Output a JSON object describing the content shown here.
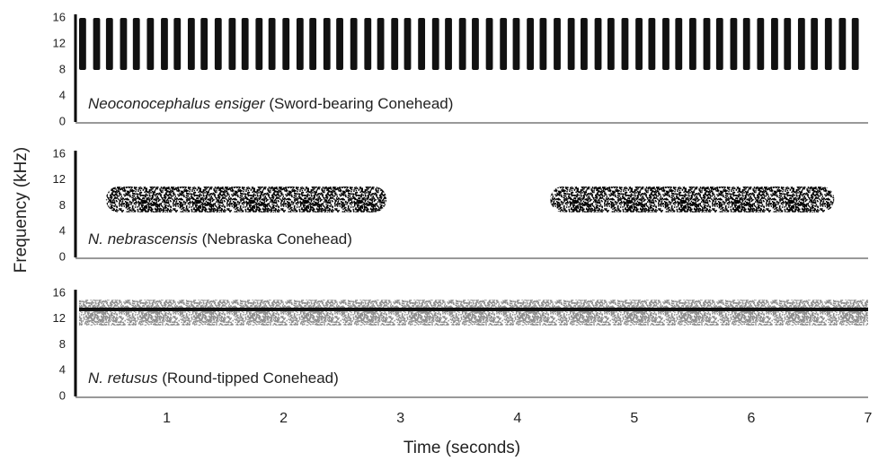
{
  "chart_data": [
    {
      "type": "spectrogram",
      "species": "Neoconocephalus ensiger",
      "common": "(Sword-bearing Conehead)",
      "xlim": [
        0.25,
        7
      ],
      "ylim": [
        0,
        16
      ],
      "yticks": [
        0,
        4,
        8,
        12,
        16
      ],
      "start": [
        0.25,
        0.37,
        0.48,
        0.6,
        0.71,
        0.83,
        0.95,
        1.06,
        1.18,
        1.29,
        1.41,
        1.53,
        1.64,
        1.76,
        1.87,
        1.99,
        2.11,
        2.22,
        2.34,
        2.45,
        2.57,
        2.69,
        2.8,
        2.92,
        3.03,
        3.15,
        3.27,
        3.38,
        3.5,
        3.61,
        3.73,
        3.85,
        3.96,
        4.08,
        4.19,
        4.31,
        4.43,
        4.54,
        4.66,
        4.77,
        4.89,
        5.01,
        5.12,
        5.24,
        5.35,
        5.47,
        5.59,
        5.7,
        5.82,
        5.93,
        6.05,
        6.17,
        6.28,
        6.4,
        6.51,
        6.63,
        6.75,
        6.86
      ],
      "end": [
        0.31,
        0.43,
        0.54,
        0.66,
        0.77,
        0.89,
        1.01,
        1.12,
        1.24,
        1.35,
        1.47,
        1.59,
        1.7,
        1.82,
        1.93,
        2.05,
        2.17,
        2.28,
        2.4,
        2.51,
        2.63,
        2.75,
        2.86,
        2.98,
        3.09,
        3.21,
        3.33,
        3.44,
        3.56,
        3.67,
        3.79,
        3.91,
        4.02,
        4.14,
        4.25,
        4.37,
        4.49,
        4.6,
        4.72,
        4.83,
        4.95,
        5.07,
        5.18,
        5.3,
        5.41,
        5.53,
        5.65,
        5.76,
        5.88,
        5.99,
        6.11,
        6.23,
        6.34,
        6.46,
        6.57,
        6.69,
        6.81,
        6.92
      ],
      "low": 8,
      "high": 16,
      "color": "#111111"
    },
    {
      "type": "spectrogram",
      "species": "N. nebrascensis",
      "common": "(Nebraska Conehead)",
      "ylabel": "Frequency (kHz)",
      "xlim": [
        0.25,
        7
      ],
      "ylim": [
        0,
        16
      ],
      "yticks": [
        0,
        4,
        8,
        12,
        16
      ],
      "start": [
        0.48,
        4.28
      ],
      "end": [
        2.88,
        6.71
      ],
      "low": 7,
      "high": 11,
      "color": "#111111"
    },
    {
      "type": "spectrogram",
      "species": "N. retusus",
      "common": "(Round-tipped Conehead)",
      "xlabel": "Time (seconds)",
      "xlim": [
        0.25,
        7
      ],
      "ylim": [
        0,
        16
      ],
      "yticks": [
        0,
        4,
        8,
        12,
        16
      ],
      "xticks": [
        1,
        2,
        3,
        4,
        5,
        6,
        7
      ],
      "start": [
        0.25
      ],
      "end": [
        7
      ],
      "low": 11,
      "high": 15,
      "peak": 13.5,
      "color": "#9a9a9a"
    }
  ]
}
